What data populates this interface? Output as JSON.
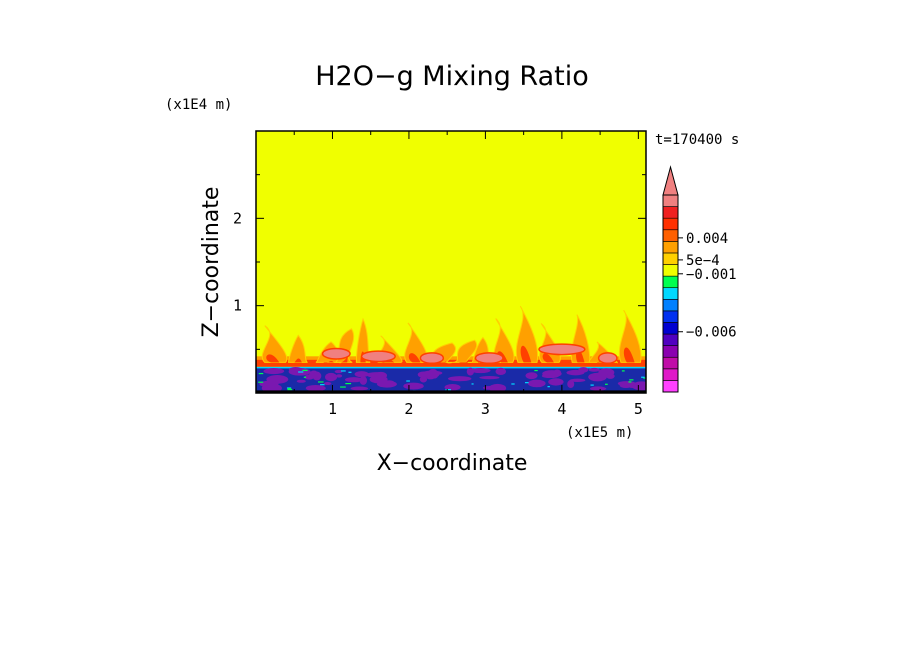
{
  "chart_data": {
    "type": "heatmap",
    "title": "H2O−g Mixing Ratio",
    "xlabel": "X−coordinate",
    "ylabel": "Z−coordinate",
    "x_scale_label": "(x1E5 m)",
    "y_scale_label": "(x1E4 m)",
    "time_label": "t=170400 s",
    "xlim": [
      0,
      5.1
    ],
    "ylim": [
      0,
      3
    ],
    "x_ticks": [
      {
        "value": 1,
        "label": "1"
      },
      {
        "value": 2,
        "label": "2"
      },
      {
        "value": 3,
        "label": "3"
      },
      {
        "value": 4,
        "label": "4"
      },
      {
        "value": 5,
        "label": "5"
      }
    ],
    "y_ticks": [
      {
        "value": 1,
        "label": "1"
      },
      {
        "value": 2,
        "label": "2"
      }
    ],
    "background_level_color": "#f0ff00",
    "colorbar": {
      "levels": [
        {
          "color": "#ff40ff"
        },
        {
          "color": "#e018c8"
        },
        {
          "color": "#c00ca8"
        },
        {
          "color": "#8a00b0"
        },
        {
          "color": "#5000c0"
        },
        {
          "color": "#0000d0"
        },
        {
          "color": "#0030f0"
        },
        {
          "color": "#0080ff"
        },
        {
          "color": "#00d8ff"
        },
        {
          "color": "#00ff50"
        },
        {
          "color": "#f0ff00"
        },
        {
          "color": "#ffd000"
        },
        {
          "color": "#ffa000"
        },
        {
          "color": "#ff6000"
        },
        {
          "color": "#ff3000"
        },
        {
          "color": "#f02020"
        },
        {
          "color": "#f08080"
        }
      ],
      "extend_top_color": "#f08080",
      "labels": [
        {
          "text": "0.004",
          "at_level": 13.3
        },
        {
          "text": "5e−4",
          "at_level": 11.4
        },
        {
          "text": "−0.001",
          "at_level": 10.2
        },
        {
          "text": "−0.006",
          "at_level": 5.2
        }
      ]
    },
    "colors": {
      "plume_outer": "#ffa000",
      "plume_mid": "#ff4000",
      "plume_core": "#f08080",
      "plume_edge": "#ffd000",
      "surface_blue": "#1a2aa8",
      "surface_purple": "#7a18b0",
      "surface_cyan": "#00d8ff",
      "surface_green": "#00ff50"
    }
  }
}
